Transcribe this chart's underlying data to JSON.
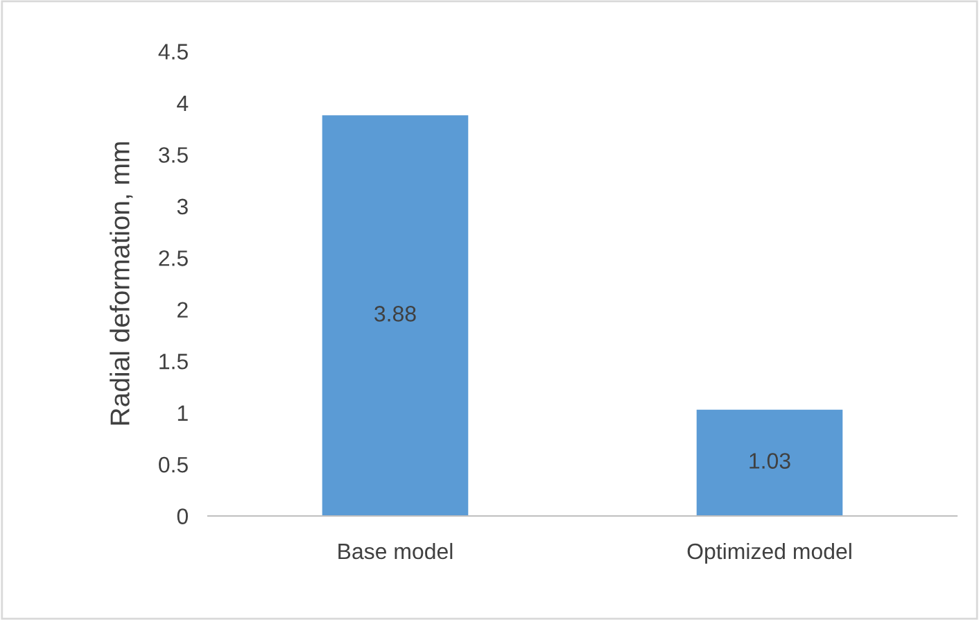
{
  "chart_data": {
    "type": "bar",
    "ylabel": "Radial deformation, mm",
    "categories": [
      "Base model",
      "Optimized model"
    ],
    "values": [
      3.88,
      1.03
    ],
    "color": "#5b9bd5",
    "ylim": [
      0,
      4.5
    ],
    "yticks": [
      0,
      0.5,
      1,
      1.5,
      2,
      2.5,
      3,
      3.5,
      4,
      4.5
    ],
    "grid": false,
    "data_labels": true
  }
}
